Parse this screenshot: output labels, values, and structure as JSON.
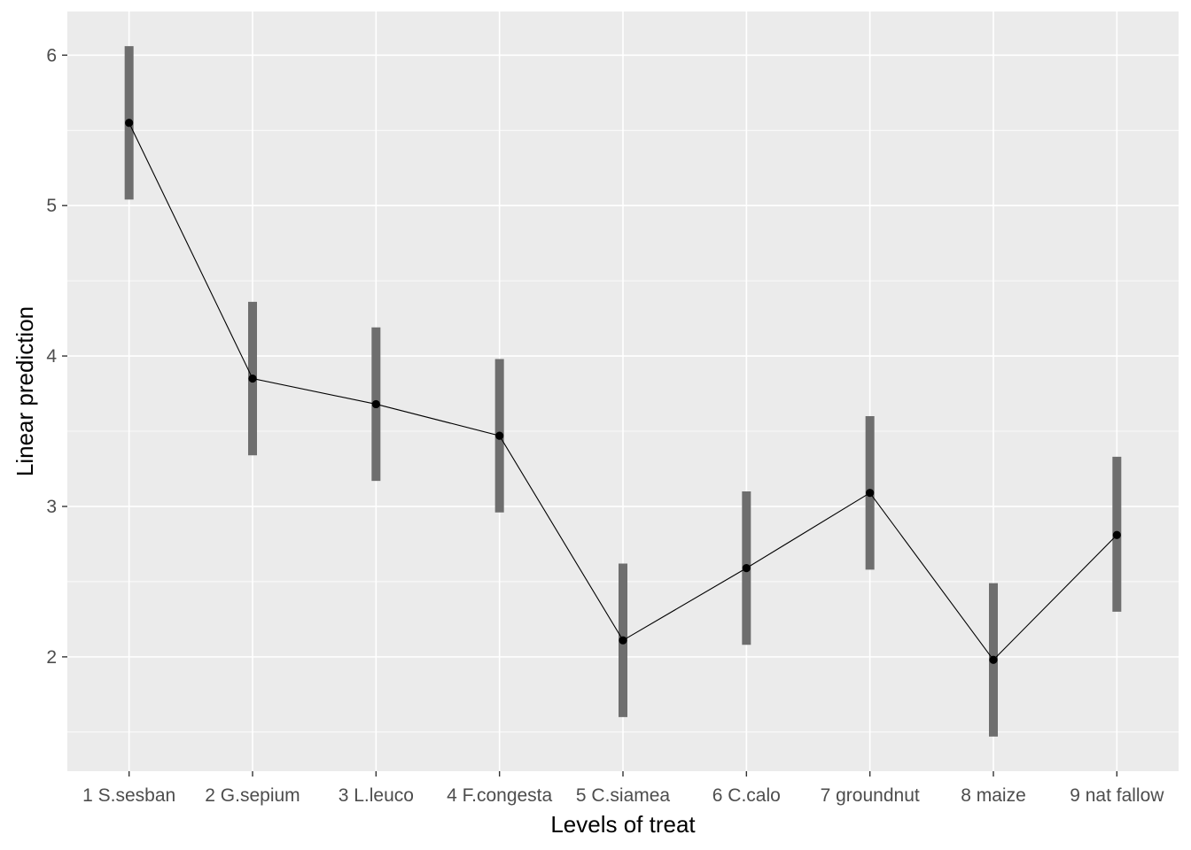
{
  "chart_data": {
    "type": "point-range",
    "xlabel": "Levels of treat",
    "ylabel": "Linear prediction",
    "categories": [
      "1 S.sesban",
      "2 G.sepium",
      "3 L.leuco",
      "4 F.congesta",
      "5 C.siamea",
      "6 C.calo",
      "7 groundnut",
      "8 maize",
      "9 nat fallow"
    ],
    "values": [
      5.55,
      3.85,
      3.68,
      3.47,
      2.11,
      2.59,
      3.09,
      1.98,
      2.81
    ],
    "lower": [
      5.04,
      3.34,
      3.17,
      2.96,
      1.6,
      2.08,
      2.58,
      1.47,
      2.3
    ],
    "upper": [
      6.06,
      4.36,
      4.19,
      3.98,
      2.62,
      3.1,
      3.6,
      2.49,
      3.33
    ],
    "ylim": [
      1.24,
      6.29
    ],
    "yticks": [
      2,
      3,
      4,
      5,
      6
    ],
    "grid": true,
    "background": "#ebebeb",
    "gridline_color": "#ffffff",
    "interval_color": "#6e6e6e",
    "line_color": "#000000",
    "point_color": "#000000"
  }
}
